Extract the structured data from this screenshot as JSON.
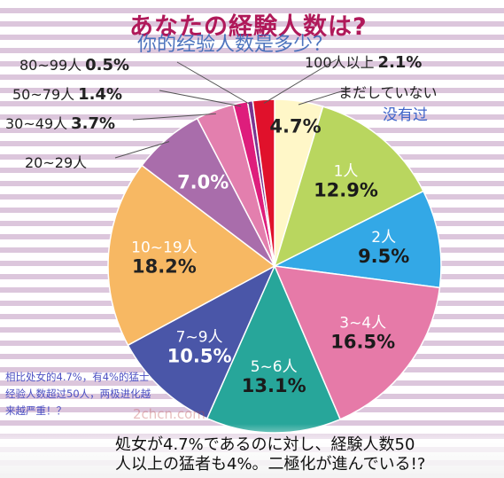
{
  "title": "あなたの経験人数は?",
  "subtitle_cn": "你的经验人数是多少？",
  "note_cn": "没有过",
  "footer": {
    "line1": "処女が4.7%であるのに対し、経験人数50",
    "line2": "人以上の猛者も4%。二極化が進んでいる!?"
  },
  "side_note": "相比处女的4.7%，有4%的猛士经验人数超过50人，两极进化越来越严重！？",
  "watermark": "2chcn.com",
  "colors": {
    "title": "#b0195a",
    "stripe": "#dcc6dc",
    "subtitle_cn": "#3b67b8"
  },
  "chart_data": {
    "type": "pie",
    "title": "あなたの経験人数は?",
    "slices": [
      {
        "label": "まだしていない",
        "value": 4.7,
        "display": "4.7%",
        "color": "#fff7c8"
      },
      {
        "label": "1人",
        "value": 12.9,
        "display": "12.9%",
        "color": "#b9d65f"
      },
      {
        "label": "2人",
        "value": 9.5,
        "display": "9.5%",
        "color": "#33a8e6"
      },
      {
        "label": "3~4人",
        "value": 16.5,
        "display": "16.5%",
        "color": "#e67aa8"
      },
      {
        "label": "5~6人",
        "value": 13.1,
        "display": "13.1%",
        "color": "#27a69a"
      },
      {
        "label": "7~9人",
        "value": 10.5,
        "display": "10.5%",
        "color": "#4a56a8"
      },
      {
        "label": "10~19人",
        "value": 18.2,
        "display": "18.2%",
        "color": "#f7b863"
      },
      {
        "label": "20~29人",
        "value": 7.0,
        "display": "7.0%",
        "color": "#a96dab"
      },
      {
        "label": "30~49人",
        "value": 3.7,
        "display": "3.7%",
        "color": "#e37fae"
      },
      {
        "label": "50~79人",
        "value": 1.4,
        "display": "1.4%",
        "color": "#de1d7c"
      },
      {
        "label": "80~99人",
        "value": 0.5,
        "display": "0.5%",
        "color": "#7a3590"
      },
      {
        "label": "100人以上",
        "value": 2.1,
        "display": "2.1%",
        "color": "#e0112b"
      }
    ]
  }
}
